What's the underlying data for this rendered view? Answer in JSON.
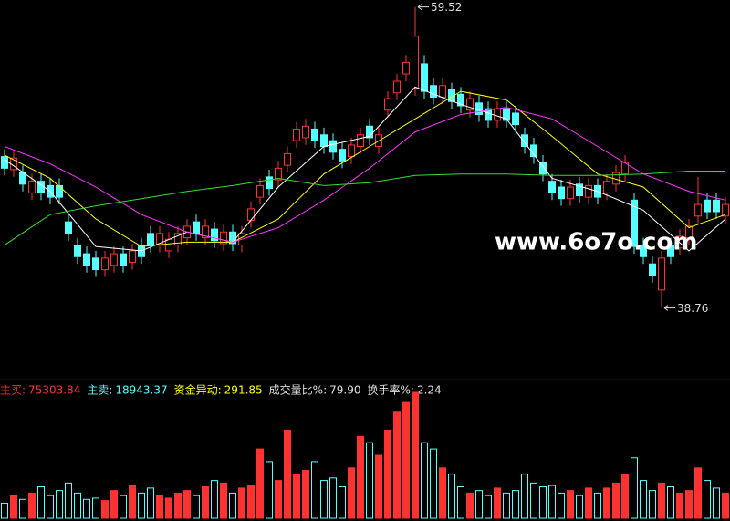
{
  "chart_data": {
    "type": "candlestick",
    "open": [
      49.2,
      48.3,
      48.1,
      46.7,
      47.5,
      47.2,
      47.2,
      44.7,
      43.1,
      42.5,
      42.2,
      41.4,
      41.7,
      42.5,
      41.9,
      43.1,
      43.9,
      43.1,
      42.7,
      43.1,
      43.6,
      44.7,
      43.6,
      44.2,
      43.2,
      44.0,
      43.1,
      44.8,
      46.4,
      47.8,
      47.6,
      48.6,
      50.3,
      50.5,
      51.1,
      50.7,
      50.3,
      49.7,
      49.2,
      49.9,
      51.3,
      49.9,
      52.4,
      53.6,
      54.9,
      53.9,
      55.6,
      54.1,
      53.3,
      53.8,
      53.5,
      52.4,
      52.9,
      52.5,
      51.7,
      52.5,
      52.2,
      50.7,
      50.0,
      48.8,
      47.5,
      47.1,
      46.3,
      47.3,
      46.4,
      47.2,
      46.7,
      47.3,
      48.0,
      46.2,
      43.1,
      41.8,
      40.0,
      43.1,
      42.9,
      43.6,
      45.1,
      46.2,
      46.2,
      45.1
    ],
    "high": [
      49.7,
      49.6,
      48.6,
      48.0,
      48.0,
      47.7,
      47.7,
      45.2,
      43.6,
      43.0,
      42.7,
      42.7,
      43.0,
      43.0,
      43.2,
      43.6,
      44.4,
      44.4,
      44.0,
      44.4,
      44.9,
      45.2,
      44.9,
      44.7,
      44.5,
      44.5,
      44.4,
      46.1,
      47.7,
      48.3,
      48.9,
      49.9,
      51.6,
      51.8,
      51.6,
      51.2,
      50.8,
      50.2,
      50.5,
      51.2,
      51.8,
      51.2,
      53.7,
      54.9,
      56.2,
      59.52,
      56.2,
      54.6,
      54.6,
      54.3,
      54.0,
      53.7,
      53.4,
      53.0,
      53.0,
      53.0,
      52.7,
      51.2,
      50.5,
      49.3,
      48.0,
      47.6,
      47.6,
      47.8,
      47.7,
      47.7,
      48.0,
      48.6,
      49.3,
      46.7,
      43.6,
      42.3,
      42.7,
      43.6,
      44.2,
      44.9,
      47.8,
      46.7,
      46.7,
      46.4
    ],
    "low": [
      47.9,
      47.8,
      46.8,
      46.2,
      46.2,
      45.9,
      45.9,
      43.4,
      41.8,
      41.2,
      40.9,
      40.9,
      41.2,
      41.2,
      41.4,
      41.8,
      42.6,
      42.6,
      42.2,
      42.6,
      43.1,
      43.4,
      43.1,
      42.9,
      42.7,
      42.7,
      42.6,
      44.3,
      45.9,
      46.5,
      47.1,
      48.1,
      49.8,
      50.0,
      49.8,
      49.4,
      49.0,
      48.4,
      48.7,
      49.4,
      50.0,
      49.4,
      51.9,
      53.1,
      54.4,
      53.4,
      53.2,
      52.8,
      52.8,
      52.5,
      52.2,
      51.9,
      51.6,
      51.2,
      51.2,
      51.2,
      50.9,
      49.4,
      48.7,
      47.5,
      46.2,
      45.8,
      45.8,
      46.0,
      45.9,
      45.9,
      46.2,
      46.8,
      47.5,
      42.5,
      41.8,
      40.5,
      38.76,
      41.8,
      42.4,
      43.1,
      44.6,
      44.9,
      44.9,
      44.6
    ],
    "close": [
      48.4,
      49.1,
      47.3,
      47.5,
      46.7,
      46.4,
      46.4,
      43.9,
      42.3,
      41.7,
      41.4,
      42.2,
      42.5,
      41.7,
      42.7,
      42.3,
      43.1,
      43.9,
      43.5,
      43.9,
      44.4,
      43.9,
      44.4,
      43.4,
      44.0,
      43.2,
      43.9,
      45.6,
      47.2,
      47.0,
      48.4,
      49.4,
      51.1,
      51.3,
      50.3,
      49.9,
      49.5,
      48.9,
      50.0,
      50.7,
      50.5,
      50.7,
      53.2,
      54.4,
      55.7,
      57.5,
      53.7,
      53.3,
      54.1,
      53.0,
      52.7,
      53.2,
      52.1,
      51.7,
      52.5,
      51.7,
      51.4,
      49.9,
      49.2,
      48.0,
      46.7,
      46.3,
      47.1,
      46.5,
      47.2,
      46.4,
      47.5,
      48.1,
      48.8,
      43.0,
      42.3,
      41.0,
      42.2,
      42.3,
      43.7,
      44.4,
      45.9,
      45.4,
      45.4,
      45.9
    ],
    "ylim": [
      34.2,
      60.0
    ],
    "up_color": "#ff3232",
    "down_color": "#54ffff",
    "ma_x": [
      0,
      5,
      10,
      15,
      20,
      25,
      30,
      35,
      40,
      45,
      50,
      55,
      60,
      65,
      70,
      75,
      79
    ],
    "ma_lines": [
      {
        "color": "#ffffff",
        "values": [
          49.0,
          46.8,
          43.0,
          42.7,
          44.0,
          43.3,
          47.1,
          49.9,
          50.6,
          54.0,
          52.8,
          51.8,
          47.7,
          46.8,
          45.5,
          42.7,
          44.9
        ]
      },
      {
        "color": "#ffff00",
        "values": [
          49.3,
          47.7,
          44.9,
          43.0,
          43.3,
          43.3,
          44.9,
          48.0,
          49.9,
          51.8,
          53.7,
          53.1,
          50.6,
          48.0,
          47.1,
          44.3,
          45.2
        ]
      },
      {
        "color": "#ff33ff",
        "values": [
          49.9,
          48.7,
          47.1,
          45.2,
          44.0,
          43.3,
          44.3,
          46.2,
          48.4,
          50.9,
          52.1,
          52.6,
          51.8,
          49.9,
          48.0,
          46.8,
          46.2
        ]
      },
      {
        "color": "#33dd33",
        "values": [
          43.1,
          45.2,
          45.8,
          46.3,
          46.8,
          47.2,
          47.7,
          47.2,
          47.4,
          47.9,
          48.0,
          48.0,
          47.9,
          47.9,
          48.0,
          48.2,
          48.2
        ]
      }
    ],
    "volume": [
      12,
      18,
      15,
      20,
      25,
      18,
      22,
      28,
      20,
      15,
      16,
      14,
      22,
      18,
      26,
      20,
      24,
      18,
      16,
      20,
      22,
      18,
      25,
      30,
      28,
      20,
      24,
      26,
      55,
      45,
      30,
      70,
      35,
      38,
      45,
      30,
      32,
      25,
      40,
      65,
      60,
      50,
      70,
      85,
      92,
      100,
      60,
      55,
      40,
      35,
      25,
      20,
      22,
      18,
      24,
      20,
      22,
      35,
      28,
      25,
      26,
      20,
      22,
      18,
      24,
      20,
      24,
      28,
      35,
      48,
      30,
      22,
      28,
      25,
      20,
      22,
      40,
      30,
      24,
      20
    ],
    "volume_ylim": [
      0,
      100
    ],
    "watermark": "www.6o7o.com",
    "indicators": [
      {
        "label": "主买:",
        "value": "75303.84",
        "color": "#ff3232"
      },
      {
        "label": "主卖:",
        "value": "18943.37",
        "color": "#54ffff"
      },
      {
        "label": "资金异动:",
        "value": "291.85",
        "color": "#ffff00"
      },
      {
        "label": "成交量比%:",
        "value": "79.90",
        "color": "#e0e0e0"
      },
      {
        "label": "换手率%:",
        "value": "2.24",
        "color": "#e0e0e0"
      }
    ]
  }
}
